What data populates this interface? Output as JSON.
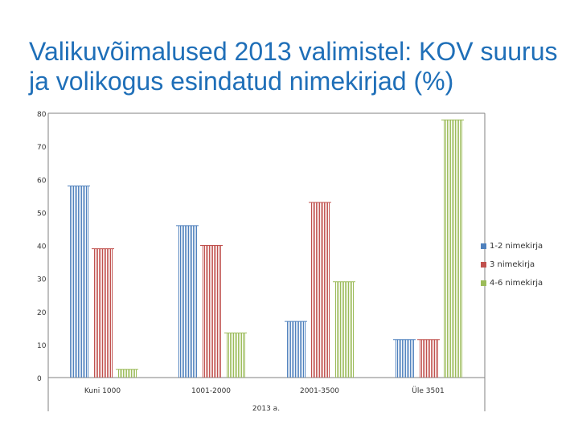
{
  "title": "Valikuvõimalused 2013 valimistel: KOV suurus ja volikogus esindatud nimekirjad (%)",
  "colors": {
    "blue": "#4f81bd",
    "red": "#c0504d",
    "green": "#9bbb59",
    "title": "#1f6fb8",
    "axis": "#808080"
  },
  "chart_data": {
    "type": "bar",
    "title": "Valikuvõimalused 2013 valimistel: KOV suurus ja volikogus esindatud nimekirjad (%)",
    "xlabel": "2013 a.",
    "ylabel": "",
    "ylim": [
      0,
      80
    ],
    "yticks": [
      "0",
      "10",
      "20",
      "30",
      "40",
      "50",
      "60",
      "70",
      "80"
    ],
    "categories": [
      "Kuni 1000",
      "1001-2000",
      "2001-3500",
      "Üle 3501"
    ],
    "series": [
      {
        "name": "1-2 nimekirja",
        "values": [
          58,
          46,
          17,
          11.5
        ]
      },
      {
        "name": "3 nimekirja",
        "values": [
          39,
          40,
          53,
          11.5
        ]
      },
      {
        "name": "4-6 nimekirja",
        "values": [
          2.5,
          13.5,
          29,
          78
        ]
      }
    ],
    "grid": false,
    "legend": "right"
  }
}
